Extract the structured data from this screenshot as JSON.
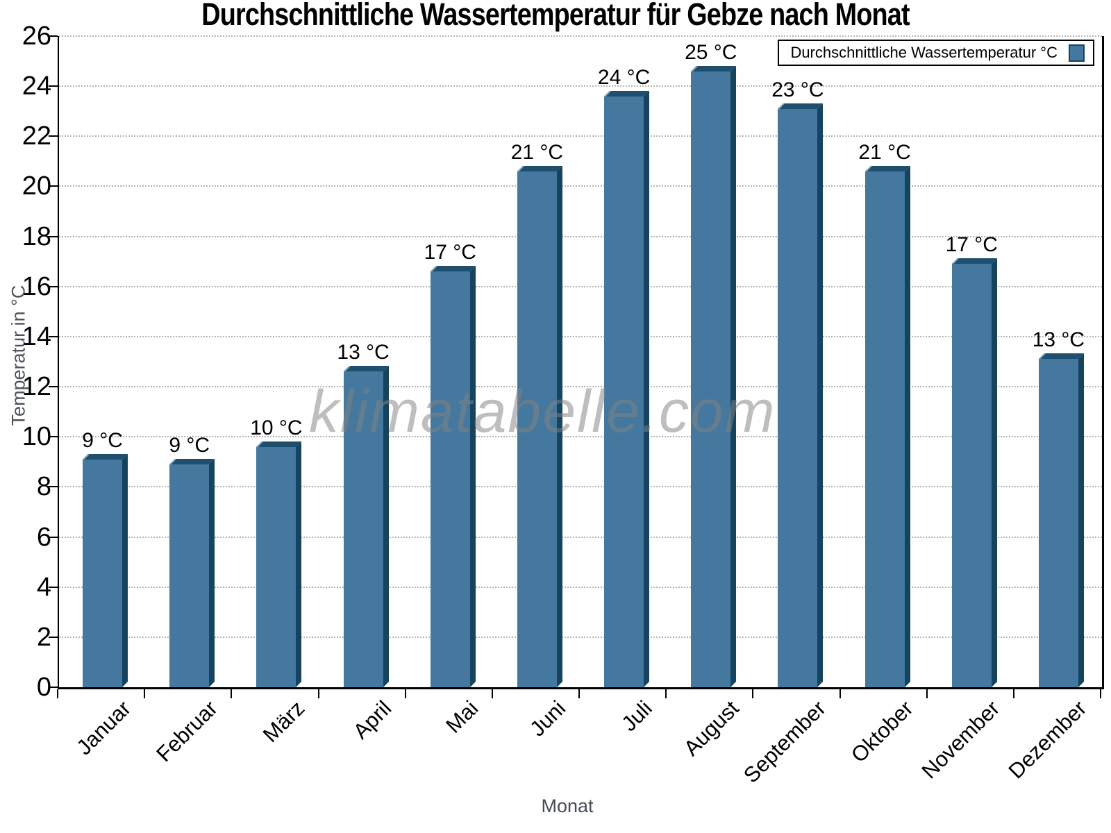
{
  "chart_data": {
    "type": "bar",
    "title": "Durchschnittliche Wassertemperatur für Gebze nach Monat",
    "xlabel": "Monat",
    "ylabel": "Temperatur in °C",
    "watermark": "klimatabelle.com",
    "categories": [
      "Januar",
      "Februar",
      "März",
      "April",
      "Mai",
      "Juni",
      "Juli",
      "August",
      "September",
      "Oktober",
      "November",
      "Dezember"
    ],
    "series": [
      {
        "name": "Durchschnittliche Wassertemperatur °C",
        "values": [
          9.1,
          8.9,
          9.6,
          12.6,
          16.6,
          20.6,
          23.6,
          24.6,
          23.1,
          20.6,
          16.9,
          13.1
        ],
        "point_labels": [
          "9 °C",
          "9 °C",
          "10 °C",
          "13 °C",
          "17 °C",
          "21 °C",
          "24 °C",
          "25 °C",
          "23 °C",
          "21 °C",
          "17 °C",
          "13 °C"
        ]
      }
    ],
    "ylim": [
      0,
      26
    ],
    "ytick_step": 2,
    "grid": "horizontal-dotted",
    "legend_position": "top-right"
  },
  "colors": {
    "bar_face": "#44789E",
    "bar_top": "#1E4F6E",
    "bar_side": "#16435D",
    "bar_bevel": "#7FA6C0",
    "grid": "#b3b3b3",
    "axis": "#000000",
    "axis_title": "#4c525c",
    "watermark": "rgba(130,130,130,0.52)"
  }
}
